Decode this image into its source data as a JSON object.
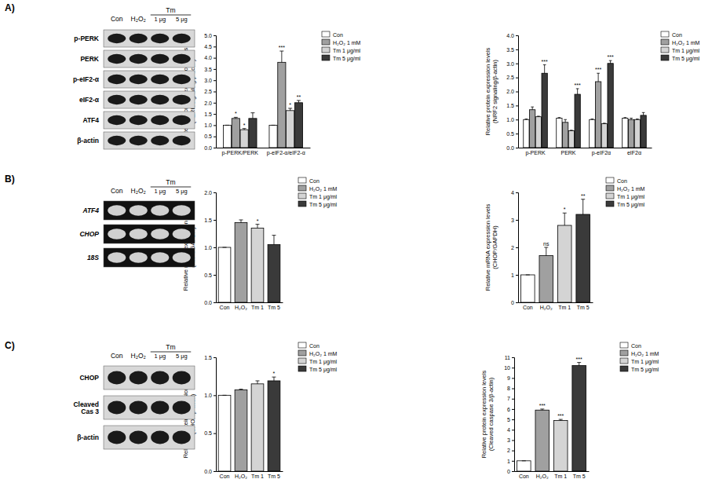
{
  "chart_data": [
    {
      "type": "bar",
      "y_label": "Relative protein expression levels\n(PERK signaling/β-actin)",
      "categories": [
        "p-PERK/PERK",
        "p-eIF2-α/eIF2-α"
      ],
      "ylim": [
        0,
        5
      ],
      "yticks": [
        {
          "value": 0,
          "label": "0.0"
        },
        {
          "value": 0.5,
          "label": "0.5"
        },
        {
          "value": 1,
          "label": "1.0"
        },
        {
          "value": 1.5,
          "label": "1.5"
        },
        {
          "value": 2,
          "label": "2.0"
        },
        {
          "value": 2.5,
          "label": "2.5"
        },
        {
          "value": 3,
          "label": "3.0"
        },
        {
          "value": 3.5,
          "label": "3.5"
        },
        {
          "value": 4,
          "label": "4.0"
        },
        {
          "value": 4.5,
          "label": "4.5"
        },
        {
          "value": 5,
          "label": "5.0"
        }
      ],
      "legend": "right",
      "series": [
        {
          "name": "Con",
          "color": "#ffffff",
          "values": [
            1.0,
            1.0
          ],
          "errors": [
            0,
            0
          ],
          "significance": [
            null,
            null
          ]
        },
        {
          "name": "H₂O₂ 1 mM",
          "color": "#a0a0a0",
          "values": [
            1.3,
            3.8
          ],
          "errors": [
            0.05,
            0.5
          ],
          "significance": [
            "*",
            "***"
          ]
        },
        {
          "name": "Tm 1 μg/ml",
          "color": "#d4d4d4",
          "values": [
            0.8,
            1.65
          ],
          "errors": [
            0.05,
            0.1
          ],
          "significance": [
            "*",
            "*"
          ]
        },
        {
          "name": "Tm 5 μg/ml",
          "color": "#3a3a3a",
          "values": [
            1.3,
            2.0
          ],
          "errors": [
            0.25,
            0.1
          ],
          "significance": [
            null,
            "**"
          ]
        }
      ]
    },
    {
      "type": "bar",
      "y_label": "Relative protein expression levels\n(NRF2 signaling/β-actin)",
      "categories": [
        "p-PERK",
        "PERK",
        "p-eIF2α",
        "eIF2α"
      ],
      "ylim": [
        0,
        4
      ],
      "yticks": [
        {
          "value": 0,
          "label": "0.0"
        },
        {
          "value": 0.5,
          "label": "0.5"
        },
        {
          "value": 1,
          "label": "1.0"
        },
        {
          "value": 1.5,
          "label": "1.5"
        },
        {
          "value": 2,
          "label": "2.0"
        },
        {
          "value": 2.5,
          "label": "2.5"
        },
        {
          "value": 3,
          "label": "3.0"
        },
        {
          "value": 3.5,
          "label": "3.5"
        },
        {
          "value": 4,
          "label": "4.0"
        }
      ],
      "legend": "right",
      "series": [
        {
          "name": "Con",
          "color": "#ffffff",
          "values": [
            1.0,
            1.05,
            1.0,
            1.05
          ],
          "errors": [
            0.02,
            0.02,
            0.02,
            0.02
          ],
          "significance": [
            null,
            null,
            null,
            null
          ]
        },
        {
          "name": "H₂O₂ 1 mM",
          "color": "#a0a0a0",
          "values": [
            1.35,
            0.9,
            2.35,
            1.0
          ],
          "errors": [
            0.1,
            0.1,
            0.3,
            0.05
          ],
          "significance": [
            null,
            null,
            "***",
            null
          ]
        },
        {
          "name": "Tm 1 μg/ml",
          "color": "#d4d4d4",
          "values": [
            1.1,
            0.6,
            0.85,
            1.0
          ],
          "errors": [
            0.02,
            0.02,
            0.02,
            0.02
          ],
          "significance": [
            null,
            null,
            null,
            null
          ]
        },
        {
          "name": "Tm 5 μg/ml",
          "color": "#3a3a3a",
          "values": [
            2.65,
            1.9,
            3.0,
            1.15
          ],
          "errors": [
            0.3,
            0.2,
            0.1,
            0.1
          ],
          "significance": [
            "***",
            "***",
            "***",
            null
          ]
        }
      ]
    },
    {
      "type": "bar",
      "y_label": "Relative mRNA expression levels\n(ATF4/GAPDH)",
      "categories": [
        "Con",
        "H₂O₂",
        "Tm 1",
        "Tm 5"
      ],
      "ylim": [
        0,
        2
      ],
      "yticks": [
        {
          "value": 0,
          "label": "0.0"
        },
        {
          "value": 0.5,
          "label": "0.5"
        },
        {
          "value": 1,
          "label": "1.0"
        },
        {
          "value": 1.5,
          "label": "1.5"
        },
        {
          "value": 2,
          "label": "2.0"
        }
      ],
      "legend": "right",
      "stacked": true,
      "series": [
        {
          "name": "Con",
          "color": "#ffffff",
          "values": [
            1.0,
            null,
            null,
            null
          ],
          "errors": [
            0,
            null,
            null,
            null
          ],
          "significance": [
            null,
            null,
            null,
            null
          ]
        },
        {
          "name": "H₂O₂ 1 mM",
          "color": "#a0a0a0",
          "values": [
            null,
            1.45,
            null,
            null
          ],
          "errors": [
            null,
            0.05,
            null,
            null
          ],
          "significance": [
            null,
            null,
            null,
            null
          ]
        },
        {
          "name": "Tm 1 μg/ml",
          "color": "#d4d4d4",
          "values": [
            null,
            null,
            1.35,
            null
          ],
          "errors": [
            null,
            null,
            0.07,
            null
          ],
          "significance": [
            null,
            null,
            "*",
            null
          ]
        },
        {
          "name": "Tm 5 μg/ml",
          "color": "#3a3a3a",
          "values": [
            null,
            null,
            null,
            1.05
          ],
          "errors": [
            null,
            null,
            null,
            0.17
          ],
          "significance": [
            null,
            null,
            null,
            null
          ]
        }
      ]
    },
    {
      "type": "bar",
      "y_label": "Relative mRNA expression levels\n(CHOP/GAPDH)",
      "categories": [
        "Con",
        "H₂O₂",
        "Tm 1",
        "Tm 5"
      ],
      "ylim": [
        0,
        4
      ],
      "yticks": [
        0,
        1,
        2,
        3,
        4
      ],
      "legend": "right",
      "stacked": true,
      "series": [
        {
          "name": "Con",
          "color": "#ffffff",
          "values": [
            1.0,
            null,
            null,
            null
          ],
          "errors": [
            0,
            null,
            null,
            null
          ],
          "significance": [
            null,
            null,
            null,
            null
          ]
        },
        {
          "name": "H₂O₂ 1 mM",
          "color": "#a0a0a0",
          "values": [
            null,
            1.7,
            null,
            null
          ],
          "errors": [
            null,
            0.3,
            null,
            null
          ],
          "significance": [
            null,
            "ns",
            null,
            null
          ]
        },
        {
          "name": "Tm 1 μg/ml",
          "color": "#d4d4d4",
          "values": [
            null,
            null,
            2.8,
            null
          ],
          "errors": [
            null,
            null,
            0.45,
            null
          ],
          "significance": [
            null,
            null,
            "*",
            null
          ]
        },
        {
          "name": "Tm 5 μg/ml",
          "color": "#3a3a3a",
          "values": [
            null,
            null,
            null,
            3.2
          ],
          "errors": [
            null,
            null,
            null,
            0.55
          ],
          "significance": [
            null,
            null,
            null,
            "**"
          ]
        }
      ]
    },
    {
      "type": "bar",
      "y_label": "Relative protein expression levels\n(CHOP/β-actin)",
      "categories": [
        "Con",
        "H₂O₂",
        "Tm 1",
        "Tm 5"
      ],
      "ylim": [
        0,
        1.5
      ],
      "yticks": [
        {
          "value": 0,
          "label": "0.0"
        },
        {
          "value": 0.5,
          "label": "0.5"
        },
        {
          "value": 1,
          "label": "1.0"
        },
        {
          "value": 1.5,
          "label": "1.5"
        }
      ],
      "legend": "right",
      "stacked": true,
      "series": [
        {
          "name": "Con",
          "color": "#ffffff",
          "values": [
            1.0,
            null,
            null,
            null
          ],
          "errors": [
            0,
            null,
            null,
            null
          ],
          "significance": [
            null,
            null,
            null,
            null
          ]
        },
        {
          "name": "H₂O₂ 1 mM",
          "color": "#a0a0a0",
          "values": [
            null,
            1.07,
            null,
            null
          ],
          "errors": [
            null,
            0.01,
            null,
            null
          ],
          "significance": [
            null,
            null,
            null,
            null
          ]
        },
        {
          "name": "Tm 1 μg/ml",
          "color": "#d4d4d4",
          "values": [
            null,
            null,
            1.15,
            null
          ],
          "errors": [
            null,
            null,
            0.04,
            null
          ],
          "significance": [
            null,
            null,
            null,
            null
          ]
        },
        {
          "name": "Tm 5 μg/ml",
          "color": "#3a3a3a",
          "values": [
            null,
            null,
            null,
            1.19
          ],
          "errors": [
            null,
            null,
            null,
            0.05
          ],
          "significance": [
            null,
            null,
            null,
            "*"
          ]
        }
      ]
    },
    {
      "type": "bar",
      "y_label": "Relative protein expression levels\n(Cleaved caspase 3/β-actin)",
      "categories": [
        "Con",
        "H₂O₂",
        "Tm 1",
        "Tm 5"
      ],
      "ylim": [
        0,
        11
      ],
      "yticks": [
        0,
        1,
        2,
        3,
        4,
        5,
        6,
        7,
        8,
        9,
        10,
        11
      ],
      "legend": "right",
      "stacked": true,
      "series": [
        {
          "name": "Con",
          "color": "#ffffff",
          "values": [
            1.0,
            null,
            null,
            null
          ],
          "errors": [
            0,
            null,
            null,
            null
          ],
          "significance": [
            null,
            null,
            null,
            null
          ]
        },
        {
          "name": "H₂O₂ 1 mM",
          "color": "#a0a0a0",
          "values": [
            null,
            5.9,
            null,
            null
          ],
          "errors": [
            null,
            0.1,
            null,
            null
          ],
          "significance": [
            null,
            "***",
            null,
            null
          ]
        },
        {
          "name": "Tm 1 μg/ml",
          "color": "#d4d4d4",
          "values": [
            null,
            null,
            4.9,
            null
          ],
          "errors": [
            null,
            null,
            0.1,
            null
          ],
          "significance": [
            null,
            null,
            "***",
            null
          ]
        },
        {
          "name": "Tm 5 μg/ml",
          "color": "#3a3a3a",
          "values": [
            null,
            null,
            null,
            10.2
          ],
          "errors": [
            null,
            null,
            null,
            0.3
          ],
          "significance": [
            null,
            null,
            null,
            "***"
          ]
        }
      ]
    }
  ],
  "panels": [
    {
      "label": "A)",
      "blot": {
        "headers": [
          "Con",
          "H₂O₂"
        ],
        "group": "Tm",
        "group_lanes": [
          "1 μg",
          "5 μg"
        ],
        "rows": [
          "p-PERK",
          "PERK",
          "p-eIF2-α",
          "eIF2-α",
          "ATF4",
          "β-actin"
        ]
      }
    },
    {
      "label": "B)",
      "blot": {
        "headers": [
          "Con",
          "H₂O₂"
        ],
        "group": "Tm",
        "group_lanes": [
          "1 μg",
          "5 μg"
        ],
        "rows": [
          "ATF4",
          "CHOP",
          "18S"
        ]
      }
    },
    {
      "label": "C)",
      "blot": {
        "headers": [
          "Con",
          "H₂O₂"
        ],
        "group": "Tm",
        "group_lanes": [
          "1 μg",
          "5 μg"
        ],
        "rows": [
          "CHOP",
          "Cleaved\nCas 3",
          "β-actin"
        ]
      }
    }
  ]
}
